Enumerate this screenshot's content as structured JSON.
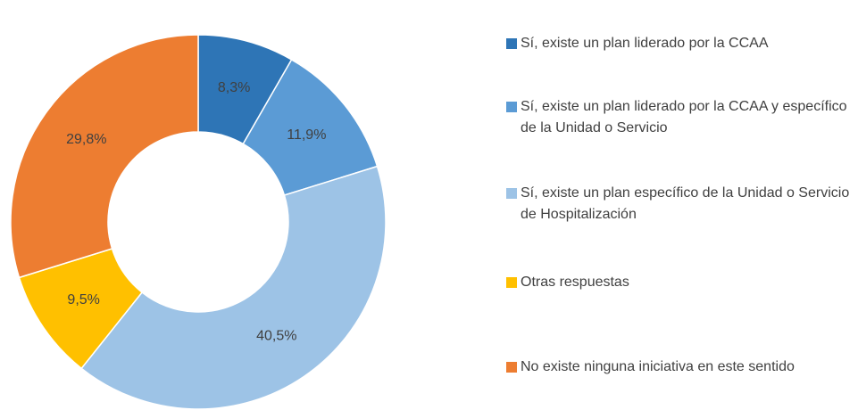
{
  "chart_data": {
    "type": "pie",
    "categories": [
      "Sí, existe un plan liderado por la CCAA",
      "Sí, existe un plan liderado por la CCAA y específico de la Unidad o Servicio",
      "Sí, existe un plan específico de la Unidad o Servicio de Hospitalización",
      "Otras respuestas",
      "No existe ninguna iniciativa en este sentido"
    ],
    "values": [
      8.3,
      11.9,
      40.5,
      9.5,
      29.8
    ],
    "value_labels": [
      "8,3%",
      "11,9%",
      "40,5%",
      "9,5%",
      "29,8%"
    ],
    "colors": [
      "#2e75b6",
      "#5b9bd5",
      "#9dc3e6",
      "#ffc000",
      "#ed7d31"
    ],
    "donut": true
  }
}
